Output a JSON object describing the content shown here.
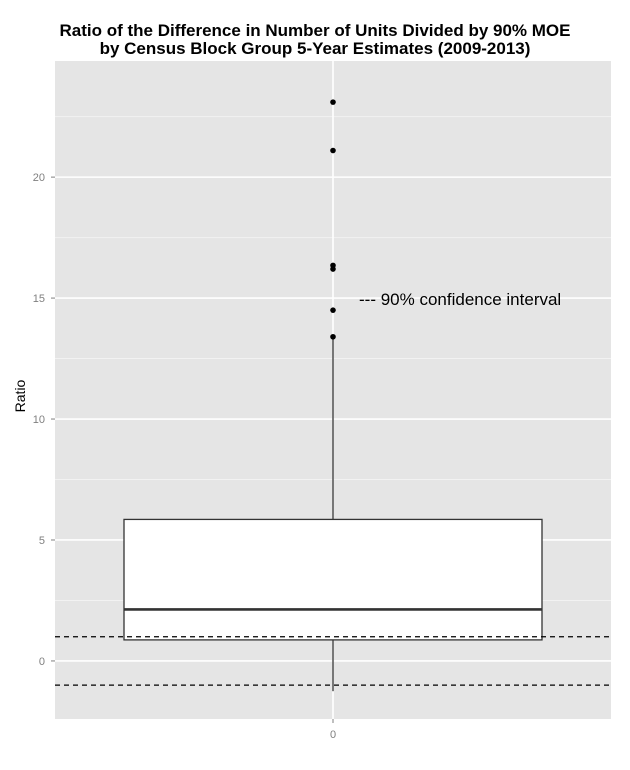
{
  "chart_data": {
    "type": "boxplot",
    "title": "Ratio of the Difference in Number of Units Divided by 90% MOE",
    "subtitle": "by Census Block Group 5-Year Estimates (2009-2013)",
    "ylabel": "Ratio",
    "xlabel": "",
    "categories": [
      "0"
    ],
    "ylim": [
      -2.4,
      24.8
    ],
    "y_ticks": [
      0,
      5,
      10,
      15,
      20
    ],
    "y_tick_labels": [
      "0",
      "5",
      "10",
      "15",
      "20"
    ],
    "x_tick_labels": [
      "0"
    ],
    "grid": true,
    "box": {
      "q1": 0.87,
      "median": 2.13,
      "q3": 5.85,
      "whisker_low": -1.25,
      "whisker_high": 13.3
    },
    "outliers": [
      13.4,
      14.5,
      16.2,
      16.35,
      21.1,
      23.1
    ],
    "reference_lines": [
      1,
      -1
    ],
    "annotation": "--- 90% confidence interval",
    "annotation_at": 15
  },
  "colors": {
    "panel_background": "#e5e5e5",
    "major_grid": "#ffffff",
    "minor_grid": "#f2f2f2",
    "box_fill": "#ffffff",
    "box_stroke": "#333333",
    "points": "#000000"
  }
}
